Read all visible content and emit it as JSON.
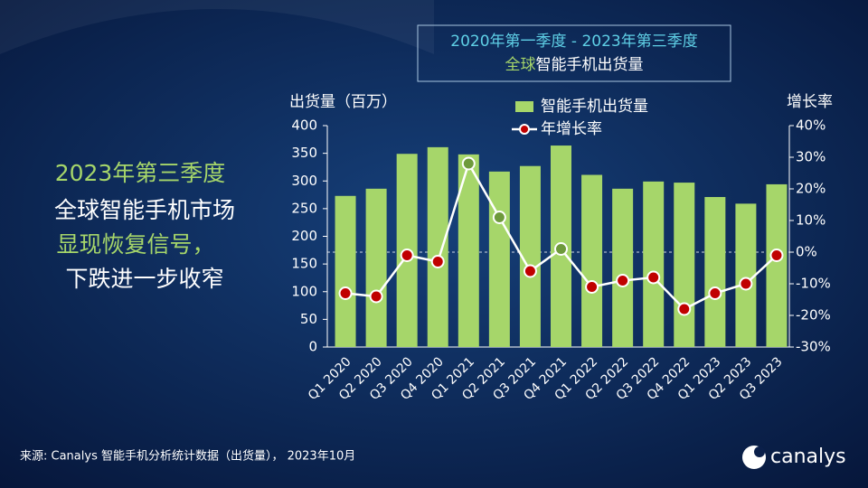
{
  "headline": [
    "2023年第三季度",
    "全球智能手机市场",
    "显现恢复信号，",
    "下跌进一步收窄"
  ],
  "footer": "来源: Canalys 智能手机分析统计数据（出货量）， 2023年10月",
  "logo": "canalys",
  "chart_data": {
    "type": "bar",
    "title": "2020年第一季度 - 2023年第三季度",
    "subtitle": [
      "全球",
      "智能手机出货量"
    ],
    "y_label": "出货量（百万）",
    "y2_label": "增长率",
    "categories": [
      "Q1 2020",
      "Q2 2020",
      "Q3 2020",
      "Q4 2020",
      "Q1 2021",
      "Q2 2021",
      "Q3 2021",
      "Q4 2021",
      "Q1 2022",
      "Q2 2022",
      "Q3 2022",
      "Q4 2022",
      "Q1 2023",
      "Q2 2023",
      "Q3 2023"
    ],
    "series": [
      {
        "name": "智能手机出货量",
        "type": "bar",
        "color": "#a6d66a",
        "values": [
          273,
          286,
          349,
          361,
          348,
          317,
          327,
          364,
          311,
          286,
          299,
          297,
          271,
          259,
          294
        ]
      },
      {
        "name": "年增长率",
        "type": "line",
        "axis": "y2",
        "color": "#ffffff",
        "marker_colors": {
          "negative": "#c00000",
          "positive": "#6e9a3c"
        },
        "values": [
          -13,
          -14,
          -1,
          -3,
          28,
          11,
          -6,
          1,
          -11,
          -9,
          -8,
          -18,
          -13,
          -10,
          -1
        ]
      }
    ],
    "ylim": [
      0,
      400
    ],
    "yticks": [
      0,
      50,
      100,
      150,
      200,
      250,
      300,
      350,
      400
    ],
    "y2lim": [
      -30,
      40
    ],
    "y2ticks": [
      {
        "value": -30,
        "label": "-30%"
      },
      {
        "value": -20,
        "label": "-20%"
      },
      {
        "value": -10,
        "label": "-10%"
      },
      {
        "value": 0,
        "label": "0%"
      },
      {
        "value": 10,
        "label": "10%"
      },
      {
        "value": 20,
        "label": "20%"
      },
      {
        "value": 30,
        "label": "30%"
      },
      {
        "value": 40,
        "label": "40%"
      }
    ]
  }
}
